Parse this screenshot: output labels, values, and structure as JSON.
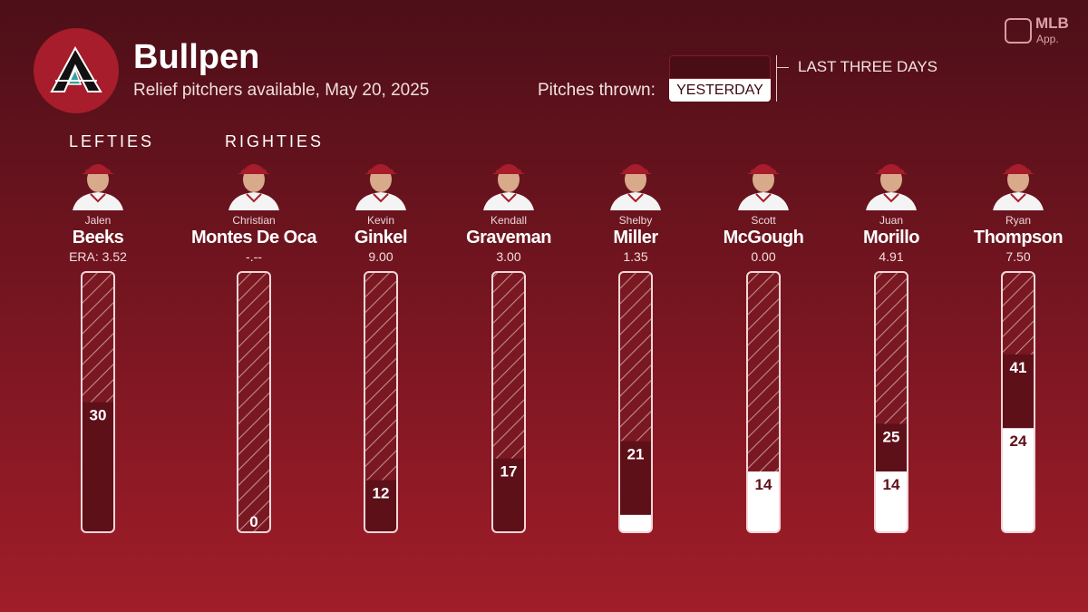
{
  "header": {
    "title": "Bullpen",
    "subtitle": "Relief pitchers available, May 20, 2025",
    "pitches_label": "Pitches thrown:",
    "legend_yesterday": "YESTERDAY",
    "legend_three_days": "LAST THREE DAYS"
  },
  "brand": {
    "name": "MLB",
    "sub": "App."
  },
  "groups": {
    "lefties": "LEFTIES",
    "righties": "RIGHTIES"
  },
  "colors": {
    "bar_dark": "#5e1019",
    "yesterday": "#ffffff",
    "hatch": "#c28a90",
    "accent": "#a71d2b"
  },
  "pitchers": [
    {
      "first": "Jalen",
      "last": "Beeks",
      "era": "ERA: 3.52"
    },
    {
      "first": "Christian",
      "last": "Montes De Oca",
      "era": "-.--"
    },
    {
      "first": "Kevin",
      "last": "Ginkel",
      "era": "9.00"
    },
    {
      "first": "Kendall",
      "last": "Graveman",
      "era": "3.00"
    },
    {
      "first": "Shelby",
      "last": "Miller",
      "era": "1.35"
    },
    {
      "first": "Scott",
      "last": "McGough",
      "era": "0.00"
    },
    {
      "first": "Juan",
      "last": "Morillo",
      "era": "4.91"
    },
    {
      "first": "Ryan",
      "last": "Thompson",
      "era": "7.50"
    }
  ],
  "chart_data": {
    "type": "bar",
    "title": "Bullpen",
    "categories": [
      "Beeks",
      "Montes De Oca",
      "Ginkel",
      "Graveman",
      "Miller",
      "McGough",
      "Morillo",
      "Thompson"
    ],
    "ylim": [
      0,
      60
    ],
    "series": [
      {
        "name": "YESTERDAY",
        "values": [
          0,
          0,
          0,
          0,
          4,
          14,
          14,
          24
        ]
      },
      {
        "name": "LAST THREE DAYS",
        "values": [
          30,
          0,
          12,
          17,
          21,
          14,
          25,
          41
        ]
      }
    ],
    "labels": {
      "yesterday": [
        "",
        "",
        "",
        "",
        "",
        "14",
        "14",
        "24"
      ],
      "three_days": [
        "30",
        "0",
        "12",
        "17",
        "21",
        "",
        "25",
        "41"
      ]
    }
  }
}
